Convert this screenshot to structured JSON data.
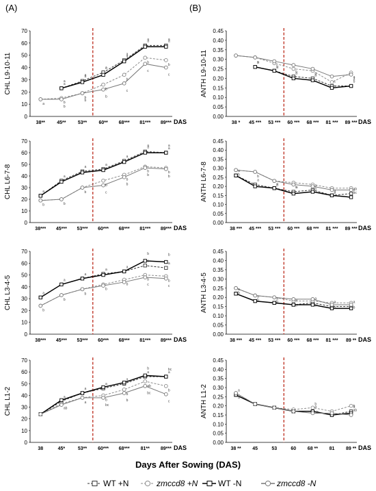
{
  "panel_labels": [
    "(A)",
    "(B)"
  ],
  "x_title": "Days After Sowing (DAS)",
  "legend": [
    {
      "label": "WT +N",
      "marker": "square",
      "dash": true,
      "stroke": "#333333"
    },
    {
      "label": "zmccd8 +N",
      "marker": "circle",
      "dash": true,
      "stroke": "#8a8a8a",
      "italic": true
    },
    {
      "label": "WT -N",
      "marker": "square",
      "dash": false,
      "stroke": "#000000"
    },
    {
      "label": "zmccd8 -N",
      "marker": "circle",
      "dash": false,
      "stroke": "#777777",
      "italic": true
    }
  ],
  "colors": {
    "wt": "#000000",
    "zm": "#777777",
    "dash_line": "#c0392b"
  },
  "chart_data": [
    {
      "type": "line",
      "ylabel": "CHL L9-10-11",
      "ylim": [
        0,
        70
      ],
      "yticks": [
        0,
        10,
        20,
        30,
        40,
        50,
        60,
        70
      ],
      "x": [
        "38",
        "45",
        "53",
        "60",
        "68",
        "81",
        "89"
      ],
      "xtick_labels": [
        "38**",
        "45**",
        "53**",
        "60**",
        "68***",
        "81***",
        "89***"
      ],
      "das_label": "DAS",
      "vline_between": [
        "53",
        "60"
      ],
      "series": [
        {
          "name": "WT +N",
          "values": [
            null,
            23,
            29,
            36,
            46,
            58,
            58
          ]
        },
        {
          "name": "zmccd8 +N",
          "values": [
            14,
            15,
            19,
            26,
            34,
            48,
            46
          ]
        },
        {
          "name": "WT -N",
          "values": [
            null,
            23,
            28,
            34,
            45,
            57,
            57
          ]
        },
        {
          "name": "zmccd8 -N",
          "values": [
            14,
            14,
            19,
            22,
            27,
            43,
            40
          ]
        }
      ],
      "letters": [
        [
          "",
          "a",
          "a",
          "a",
          "a",
          "a",
          "a"
        ],
        [
          "a",
          "b",
          "b",
          "b",
          "b",
          "b",
          "b"
        ],
        [
          "",
          "a",
          "a",
          "a",
          "a",
          "a",
          "a"
        ],
        [
          "",
          "b",
          "b",
          "b",
          "c",
          "c",
          "c"
        ]
      ]
    },
    {
      "type": "line",
      "ylabel": "CHL L6-7-8",
      "ylim": [
        0,
        70
      ],
      "yticks": [
        0,
        10,
        20,
        30,
        40,
        50,
        60,
        70
      ],
      "x": [
        "38",
        "45",
        "53",
        "60",
        "68",
        "81",
        "89"
      ],
      "xtick_labels": [
        "38***",
        "45***",
        "53***",
        "60***",
        "68***",
        "81***",
        "89***"
      ],
      "das_label": "DAS",
      "vline_between": [
        "53",
        "60"
      ],
      "series": [
        {
          "name": "WT +N",
          "values": [
            23,
            36,
            44,
            46,
            53,
            61,
            60
          ]
        },
        {
          "name": "zmccd8 +N",
          "values": [
            19,
            20,
            30,
            36,
            41,
            48,
            47
          ]
        },
        {
          "name": "WT -N",
          "values": [
            23,
            35,
            43,
            45,
            52,
            60,
            60
          ]
        },
        {
          "name": "zmccd8 -N",
          "values": [
            19,
            20,
            30,
            32,
            39,
            47,
            46
          ]
        }
      ],
      "letters": [
        [
          "a",
          "a",
          "a",
          "a",
          "a",
          "a",
          "a"
        ],
        [
          "b",
          "b",
          "b",
          "b",
          "b",
          "b",
          "b"
        ],
        [
          "",
          "",
          "",
          "",
          "",
          "a",
          "a"
        ],
        [
          "",
          "",
          "",
          "c",
          "b",
          "b",
          "b"
        ]
      ]
    },
    {
      "type": "line",
      "ylabel": "CHL L3-4-5",
      "ylim": [
        0,
        70
      ],
      "yticks": [
        0,
        10,
        20,
        30,
        40,
        50,
        60,
        70
      ],
      "x": [
        "38",
        "45",
        "53",
        "60",
        "68",
        "81",
        "89"
      ],
      "xtick_labels": [
        "38***",
        "45***",
        "53***",
        "60***",
        "68***",
        "81***",
        "89***"
      ],
      "das_label": "DAS",
      "vline_between": [
        "53",
        "60"
      ],
      "series": [
        {
          "name": "WT +N",
          "values": [
            31,
            42,
            47,
            51,
            53,
            58,
            56
          ]
        },
        {
          "name": "zmccd8 +N",
          "values": [
            24,
            33,
            38,
            42,
            46,
            50,
            49
          ]
        },
        {
          "name": "WT -N",
          "values": [
            31,
            42,
            47,
            50,
            53,
            62,
            61
          ]
        },
        {
          "name": "zmccd8 -N",
          "values": [
            24,
            33,
            38,
            41,
            44,
            48,
            47
          ]
        }
      ],
      "letters": [
        [
          "a",
          "a",
          "a",
          "a",
          "a",
          "a",
          "a"
        ],
        [
          "b",
          "b",
          "b",
          "b",
          "b",
          "b",
          "b"
        ],
        [
          "",
          "",
          "",
          "",
          "",
          "b",
          "b"
        ],
        [
          "",
          "",
          "",
          "",
          "",
          "c",
          "c"
        ]
      ]
    },
    {
      "type": "line",
      "ylabel": "CHL L1-2",
      "ylim": [
        0,
        70
      ],
      "yticks": [
        0,
        10,
        20,
        30,
        40,
        50,
        60,
        70
      ],
      "x": [
        "38",
        "45",
        "53",
        "60",
        "68",
        "81",
        "89"
      ],
      "xtick_labels": [
        "38",
        "45*",
        "53**",
        "60***",
        "68***",
        "81**",
        "89***"
      ],
      "das_label": "DAS",
      "vline_between": [
        "53",
        "60"
      ],
      "series": [
        {
          "name": "WT +N",
          "values": [
            24,
            35,
            42,
            46,
            50,
            56,
            56
          ]
        },
        {
          "name": "zmccd8 +N",
          "values": [
            24,
            33,
            38,
            40,
            45,
            52,
            48
          ]
        },
        {
          "name": "WT -N",
          "values": [
            24,
            36,
            42,
            47,
            51,
            57,
            56
          ]
        },
        {
          "name": "zmccd8 -N",
          "values": [
            24,
            32,
            38,
            38,
            42,
            48,
            41
          ]
        }
      ],
      "letters": [
        [
          "",
          "a",
          "a",
          "a",
          "a",
          "a",
          "a"
        ],
        [
          "",
          "ab",
          "a",
          "b",
          "b",
          "ab",
          "b"
        ],
        [
          "",
          "",
          "",
          "",
          "",
          "b",
          "bc"
        ],
        [
          "",
          "",
          "",
          "bc",
          "b",
          "bc",
          "c"
        ]
      ]
    },
    {
      "type": "line",
      "ylabel": "ANTH L9-10-11",
      "ylim": [
        0,
        0.45
      ],
      "yticks": [
        0,
        0.05,
        0.1,
        0.15,
        0.2,
        0.25,
        0.3,
        0.35,
        0.4,
        0.45
      ],
      "x": [
        "38",
        "45",
        "53",
        "60",
        "68",
        "81",
        "89"
      ],
      "xtick_labels": [
        "38 *",
        "45 ***",
        "53 ***",
        "60 ***",
        "68 ***",
        "81 ***",
        "89 ***"
      ],
      "das_label": "DAS",
      "vline_between": [
        "53",
        "60"
      ],
      "series": [
        {
          "name": "WT +N",
          "values": [
            null,
            0.26,
            0.24,
            0.21,
            0.2,
            0.16,
            0.16
          ]
        },
        {
          "name": "zmccd8 +N",
          "values": [
            0.32,
            0.31,
            0.28,
            0.25,
            0.24,
            0.18,
            0.23
          ]
        },
        {
          "name": "WT -N",
          "values": [
            null,
            0.26,
            0.24,
            0.2,
            0.19,
            0.15,
            0.16
          ]
        },
        {
          "name": "zmccd8 -N",
          "values": [
            0.32,
            0.31,
            0.29,
            0.27,
            0.25,
            0.21,
            0.22
          ]
        }
      ],
      "letters": [
        [
          "a",
          "b",
          "b",
          "b",
          "b",
          "c",
          "b"
        ],
        [
          "",
          "a",
          "a",
          "a",
          "a",
          "b",
          "a"
        ],
        [
          "",
          "",
          "",
          "",
          "",
          "",
          "a"
        ],
        [
          "",
          "",
          "",
          "",
          "",
          "",
          ""
        ]
      ]
    },
    {
      "type": "line",
      "ylabel": "ANTH L6-7-8",
      "ylim": [
        0,
        0.45
      ],
      "yticks": [
        0,
        0.05,
        0.1,
        0.15,
        0.2,
        0.25,
        0.3,
        0.35,
        0.4,
        0.45
      ],
      "x": [
        "38",
        "45",
        "53",
        "60",
        "68",
        "81",
        "89"
      ],
      "xtick_labels": [
        "38 ***",
        "45 ***",
        "53 ***",
        "60 ***",
        "68 ***",
        "81 ***",
        "89 ***"
      ],
      "das_label": "DAS",
      "vline_between": [
        "53",
        "60"
      ],
      "series": [
        {
          "name": "WT +N",
          "values": [
            0.26,
            0.21,
            0.19,
            0.17,
            0.18,
            0.15,
            0.16
          ]
        },
        {
          "name": "zmccd8 +N",
          "values": [
            0.29,
            0.28,
            0.23,
            0.22,
            0.21,
            0.19,
            0.19
          ]
        },
        {
          "name": "WT -N",
          "values": [
            0.26,
            0.2,
            0.19,
            0.16,
            0.17,
            0.15,
            0.14
          ]
        },
        {
          "name": "zmccd8 -N",
          "values": [
            0.29,
            0.28,
            0.23,
            0.21,
            0.2,
            0.18,
            0.18
          ]
        }
      ],
      "letters": [
        [
          "a",
          "a",
          "a",
          "a",
          "a",
          "a",
          "ab"
        ],
        [
          "b",
          "b",
          "b",
          "b",
          "b",
          "b",
          "bc"
        ],
        [
          "",
          "",
          "",
          "",
          "",
          "",
          "c"
        ],
        [
          "",
          "",
          "",
          "",
          "",
          "",
          ""
        ]
      ]
    },
    {
      "type": "line",
      "ylabel": "ANTH L3-4-5",
      "ylim": [
        0,
        0.45
      ],
      "yticks": [
        0,
        0.05,
        0.1,
        0.15,
        0.2,
        0.25,
        0.3,
        0.35,
        0.4,
        0.45
      ],
      "x": [
        "38",
        "45",
        "53",
        "60",
        "68",
        "81",
        "89"
      ],
      "xtick_labels": [
        "38 ***",
        "45 ***",
        "53 ***",
        "60 ***",
        "68 ***",
        "81 ***",
        "89 **"
      ],
      "das_label": "DAS",
      "vline_between": [
        "53",
        "60"
      ],
      "series": [
        {
          "name": "WT +N",
          "values": [
            0.22,
            0.18,
            0.17,
            0.16,
            0.17,
            0.15,
            0.15
          ]
        },
        {
          "name": "zmccd8 +N",
          "values": [
            0.25,
            0.21,
            0.2,
            0.18,
            0.18,
            0.17,
            0.17
          ]
        },
        {
          "name": "WT -N",
          "values": [
            0.22,
            0.18,
            0.17,
            0.16,
            0.16,
            0.14,
            0.14
          ]
        },
        {
          "name": "zmccd8 -N",
          "values": [
            0.25,
            0.21,
            0.2,
            0.19,
            0.19,
            0.16,
            0.16
          ]
        }
      ],
      "letters": [
        [
          "a",
          "a",
          "a",
          "a",
          "a",
          "a",
          "a"
        ],
        [
          "b",
          "b",
          "b",
          "b",
          "b",
          "b",
          "b"
        ],
        [
          "",
          "",
          "",
          "",
          "",
          "",
          ""
        ],
        [
          "",
          "",
          "",
          "",
          "",
          "",
          ""
        ]
      ]
    },
    {
      "type": "line",
      "ylabel": "ANTH L1-2",
      "ylim": [
        0,
        0.45
      ],
      "yticks": [
        0,
        0.05,
        0.1,
        0.15,
        0.2,
        0.25,
        0.3,
        0.35,
        0.4,
        0.45
      ],
      "x": [
        "38",
        "45",
        "53",
        "60",
        "68",
        "81",
        "89"
      ],
      "xtick_labels": [
        "38 **",
        "45",
        "53",
        "60",
        "68 **",
        "81",
        "89 **"
      ],
      "das_label": "DAS",
      "vline_between": [
        "53",
        "60"
      ],
      "series": [
        {
          "name": "WT +N",
          "values": [
            0.26,
            0.21,
            0.19,
            0.17,
            0.17,
            0.15,
            0.17
          ]
        },
        {
          "name": "zmccd8 +N",
          "values": [
            0.27,
            0.21,
            0.19,
            0.18,
            0.19,
            0.17,
            0.2
          ]
        },
        {
          "name": "WT -N",
          "values": [
            0.26,
            0.21,
            0.19,
            0.17,
            0.17,
            0.15,
            0.16
          ]
        },
        {
          "name": "zmccd8 -N",
          "values": [
            0.27,
            0.21,
            0.19,
            0.17,
            0.16,
            0.16,
            0.15
          ]
        }
      ],
      "letters": [
        [
          "a",
          "",
          "",
          "",
          "a",
          "",
          "a"
        ],
        [
          "a",
          "",
          "",
          "",
          "ab",
          "",
          "ab"
        ],
        [
          "",
          "",
          "",
          "",
          "b",
          "",
          "b"
        ],
        [
          "",
          "",
          "",
          "",
          "",
          "",
          ""
        ]
      ]
    }
  ]
}
